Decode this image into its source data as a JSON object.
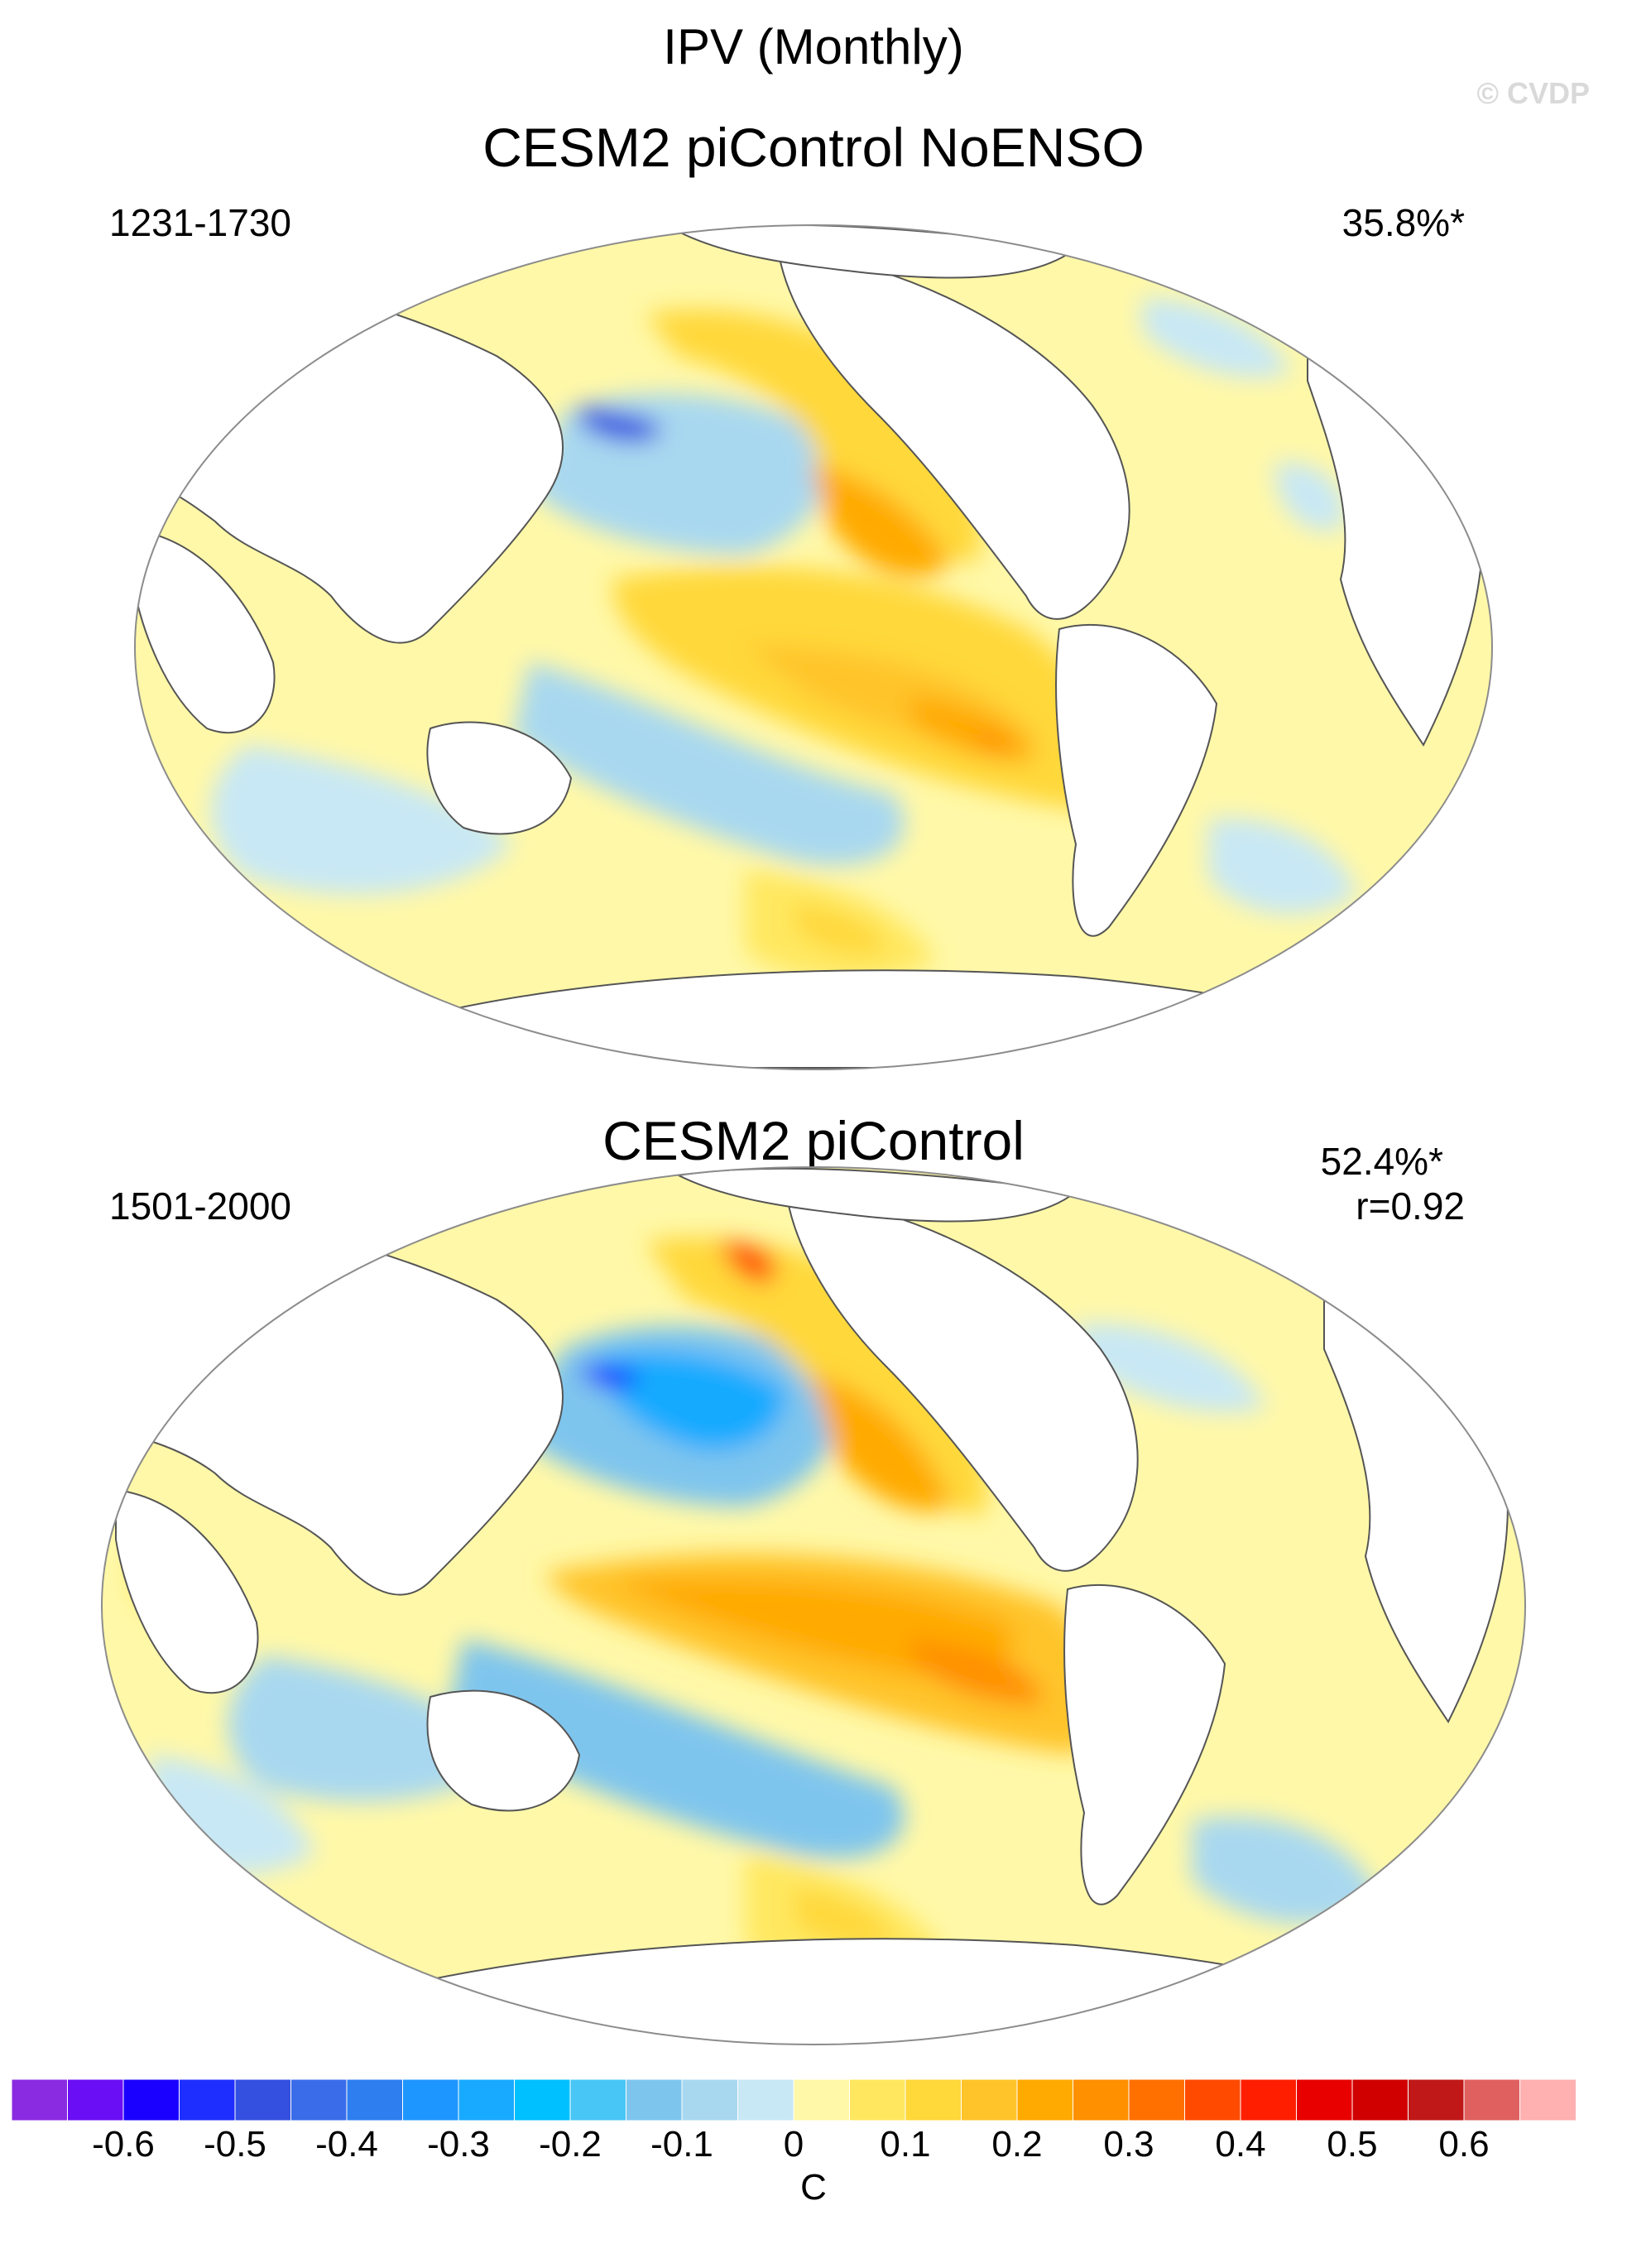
{
  "figure": {
    "title": "IPV (Monthly)",
    "watermark": "© CVDP"
  },
  "panels": [
    {
      "title": "CESM2 piControl NoENSO",
      "years": "1231-1730",
      "variance": "35.8%*",
      "correlation": ""
    },
    {
      "title": "CESM2 piControl",
      "years": "1501-2000",
      "variance": "52.4%*",
      "correlation": "r=0.92"
    }
  ],
  "colorbar": {
    "unit": "C",
    "tick_labels": [
      "-0.6",
      "-0.5",
      "-0.4",
      "-0.3",
      "-0.2",
      "-0.1",
      "0",
      "0.1",
      "0.2",
      "0.3",
      "0.4",
      "0.5",
      "0.6"
    ],
    "colors": [
      "#8a2be2",
      "#6a0ef5",
      "#1a00ff",
      "#1e2eff",
      "#3450e0",
      "#3a6cea",
      "#2e7ef0",
      "#1e96ff",
      "#18aaff",
      "#00c0ff",
      "#48c6f5",
      "#7ec5ee",
      "#a8d8f0",
      "#c8e8f5",
      "#fff8a8",
      "#ffe860",
      "#ffd83a",
      "#ffc42a",
      "#ffaa00",
      "#ff9000",
      "#ff7000",
      "#ff4a00",
      "#ff1e00",
      "#e80000",
      "#d00000",
      "#c01818",
      "#e06060",
      "#ffb0b0"
    ]
  }
}
